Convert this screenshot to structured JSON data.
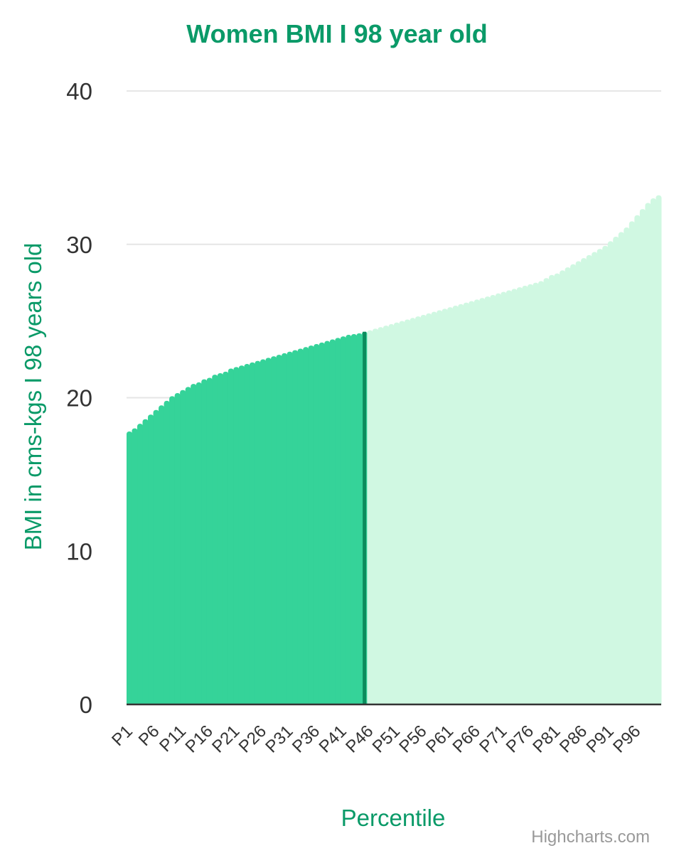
{
  "colors": {
    "title": "#0a9a68",
    "axis_title": "#0a9a68",
    "area_highlight": "#35d399",
    "area_rest": "#d0f8e2",
    "marker_line": "#0b8b5c",
    "grid": "#e6e6e6",
    "axis_line": "#333333",
    "tick_text": "#333333",
    "credits": "#999999"
  },
  "chart_data": {
    "type": "bar",
    "title": "Women BMI I 98 year old",
    "ylabel": "BMI in cms-kgs I 98 years old",
    "xlabel": "Percentile",
    "ylim": [
      0,
      40
    ],
    "y_ticks": [
      "0",
      "10",
      "20",
      "30",
      "40"
    ],
    "x_tick_labels": [
      "P1",
      "P6",
      "P11",
      "P16",
      "P21",
      "P26",
      "P31",
      "P36",
      "P41",
      "P46",
      "P51",
      "P56",
      "P61",
      "P66",
      "P71",
      "P76",
      "P81",
      "P86",
      "P91",
      "P96"
    ],
    "highlight_through_percentile": 45,
    "marker_percentile": 45,
    "grid": true,
    "legend": "none",
    "series": [
      {
        "values": [
          17.8,
          18.0,
          18.3,
          18.6,
          18.9,
          19.2,
          19.5,
          19.8,
          20.1,
          20.3,
          20.5,
          20.7,
          20.9,
          21.0,
          21.2,
          21.3,
          21.5,
          21.6,
          21.7,
          21.9,
          22.0,
          22.1,
          22.2,
          22.3,
          22.4,
          22.5,
          22.6,
          22.7,
          22.8,
          22.9,
          23.0,
          23.1,
          23.2,
          23.3,
          23.4,
          23.5,
          23.6,
          23.7,
          23.8,
          23.9,
          24.0,
          24.1,
          24.15,
          24.2,
          24.3,
          24.4,
          24.5,
          24.6,
          24.7,
          24.8,
          24.9,
          25.0,
          25.1,
          25.2,
          25.3,
          25.4,
          25.5,
          25.6,
          25.7,
          25.8,
          25.9,
          26.0,
          26.1,
          26.2,
          26.3,
          26.4,
          26.5,
          26.6,
          26.7,
          26.8,
          26.9,
          27.0,
          27.1,
          27.2,
          27.3,
          27.4,
          27.5,
          27.6,
          27.8,
          28.0,
          28.1,
          28.3,
          28.5,
          28.7,
          28.9,
          29.1,
          29.3,
          29.5,
          29.7,
          29.9,
          30.2,
          30.5,
          30.8,
          31.1,
          31.5,
          31.9,
          32.3,
          32.7,
          33.0,
          33.2
        ]
      }
    ]
  },
  "credits": "Highcharts.com"
}
